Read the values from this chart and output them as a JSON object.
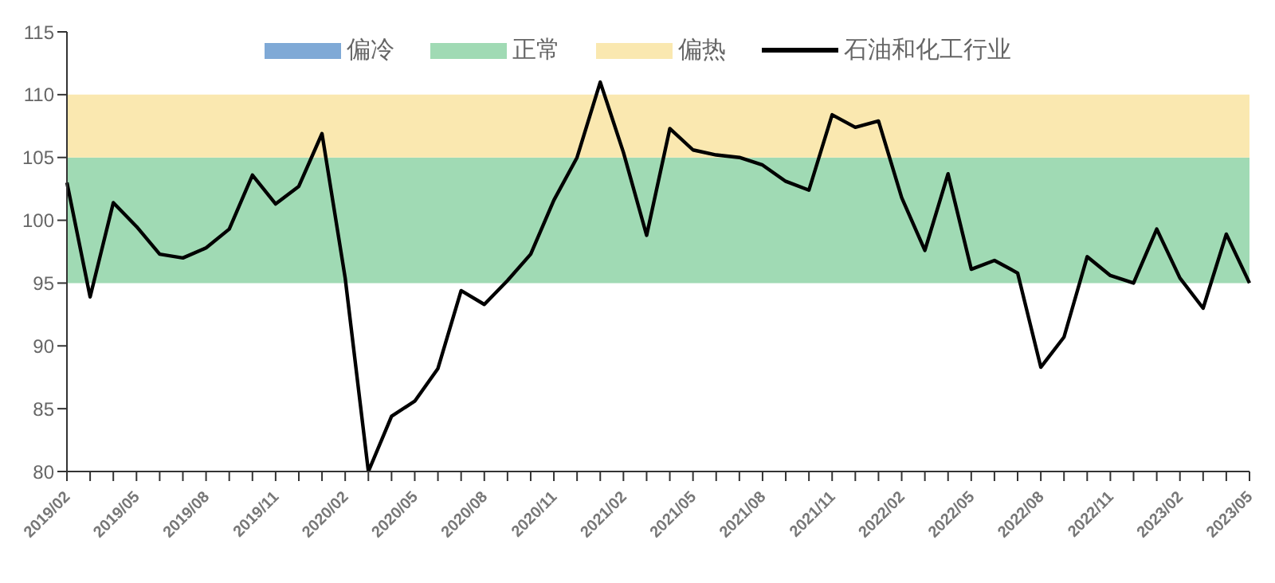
{
  "chart_data": {
    "type": "line",
    "categories": [
      "2019/02",
      null,
      null,
      "2019/05",
      null,
      null,
      "2019/08",
      null,
      null,
      "2019/11",
      null,
      null,
      "2020/02",
      null,
      null,
      "2020/05",
      null,
      null,
      "2020/08",
      null,
      null,
      "2020/11",
      null,
      null,
      "2021/02",
      null,
      null,
      "2021/05",
      null,
      null,
      "2021/08",
      null,
      null,
      "2021/11",
      null,
      null,
      "2022/02",
      null,
      null,
      "2022/05",
      null,
      null,
      "2022/08",
      null,
      null,
      "2022/11",
      null,
      null,
      "2023/02",
      null,
      null,
      "2023/05"
    ],
    "series": [
      {
        "name": "偏冷",
        "type": "area",
        "color": "#7fa9d6",
        "values": [
          null,
          null,
          null,
          null,
          null,
          null,
          null,
          null,
          null,
          null,
          null,
          null,
          null,
          null,
          null,
          null,
          null,
          null,
          null,
          null,
          null,
          null,
          null,
          null,
          null,
          null,
          null,
          null,
          null,
          null,
          null,
          null,
          null,
          null,
          null,
          null,
          null,
          null,
          null,
          null,
          null,
          null,
          null,
          null,
          null,
          null,
          null,
          null,
          null,
          null,
          null,
          null
        ]
      },
      {
        "name": "石油和化工行业",
        "color": "#000000",
        "values": [
          103,
          93.9,
          101.4,
          99.5,
          97.3,
          97,
          97.8,
          99.3,
          103.6,
          101.3,
          102.7,
          106.9,
          95.4,
          80,
          84.4,
          85.6,
          88.2,
          94.4,
          93.3,
          95.2,
          97.3,
          101.6,
          105,
          111,
          105.4,
          98.8,
          107.3,
          105.6,
          105.2,
          105,
          104.4,
          103.1,
          102.4,
          108.4,
          107.4,
          107.9,
          101.8,
          97.6,
          103.7,
          96.1,
          96.8,
          95.8,
          88.3,
          90.7,
          97.1,
          95.6,
          95,
          99.3,
          95.4,
          93,
          98.9,
          95
        ]
      }
    ],
    "bands": [
      {
        "axis": "y",
        "from": 95,
        "to": 105,
        "label": "正常",
        "color": "#a0dab4"
      },
      {
        "axis": "y",
        "from": 105,
        "to": 110,
        "label": "偏热",
        "color": "#fae8b0"
      }
    ],
    "ylim": [
      80,
      115
    ],
    "yticks": [
      80,
      85,
      90,
      95,
      100,
      105,
      110,
      115
    ],
    "legend": "top",
    "marker": "none",
    "line_style": "solid"
  }
}
